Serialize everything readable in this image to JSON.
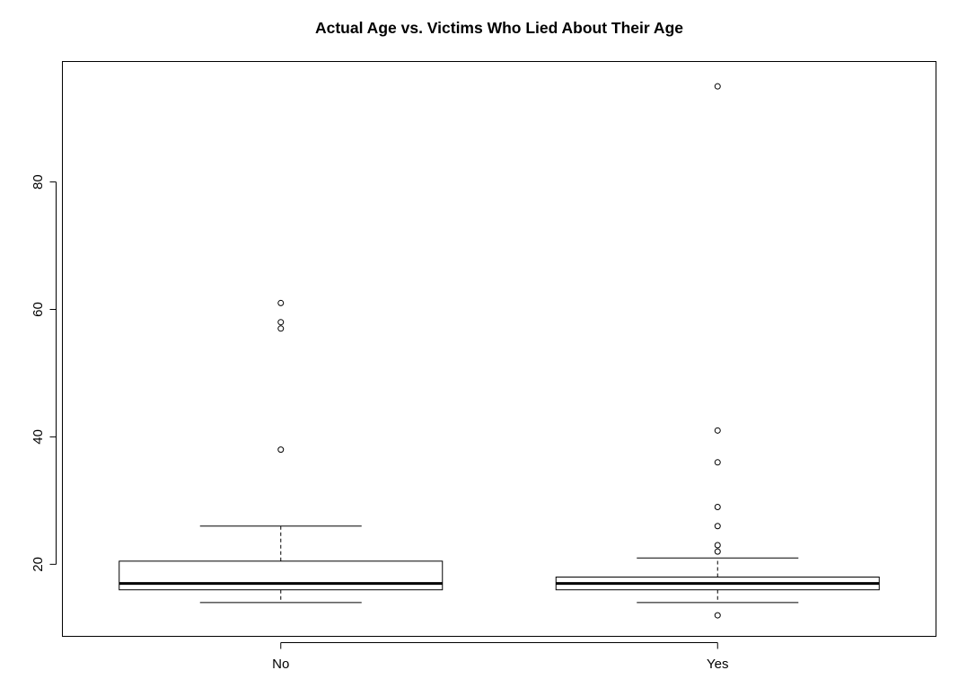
{
  "chart_data": {
    "type": "boxplot",
    "title": "Actual Age vs. Victims Who Lied About Their Age",
    "xlabel": "",
    "ylabel": "",
    "ylim": [
      8.7,
      98.9
    ],
    "yticks": [
      20,
      40,
      60,
      80
    ],
    "categories": [
      "No",
      "Yes"
    ],
    "boxes": [
      {
        "category": "No",
        "whisker_low": 14,
        "q1": 16,
        "median": 17,
        "q3": 20.5,
        "whisker_high": 26,
        "outliers": [
          38,
          57,
          58,
          61
        ]
      },
      {
        "category": "Yes",
        "whisker_low": 14,
        "q1": 16,
        "median": 17,
        "q3": 18,
        "whisker_high": 21,
        "outliers": [
          12,
          22,
          23,
          26,
          29,
          36,
          41,
          95
        ]
      }
    ],
    "grid": false,
    "legend": "none"
  }
}
